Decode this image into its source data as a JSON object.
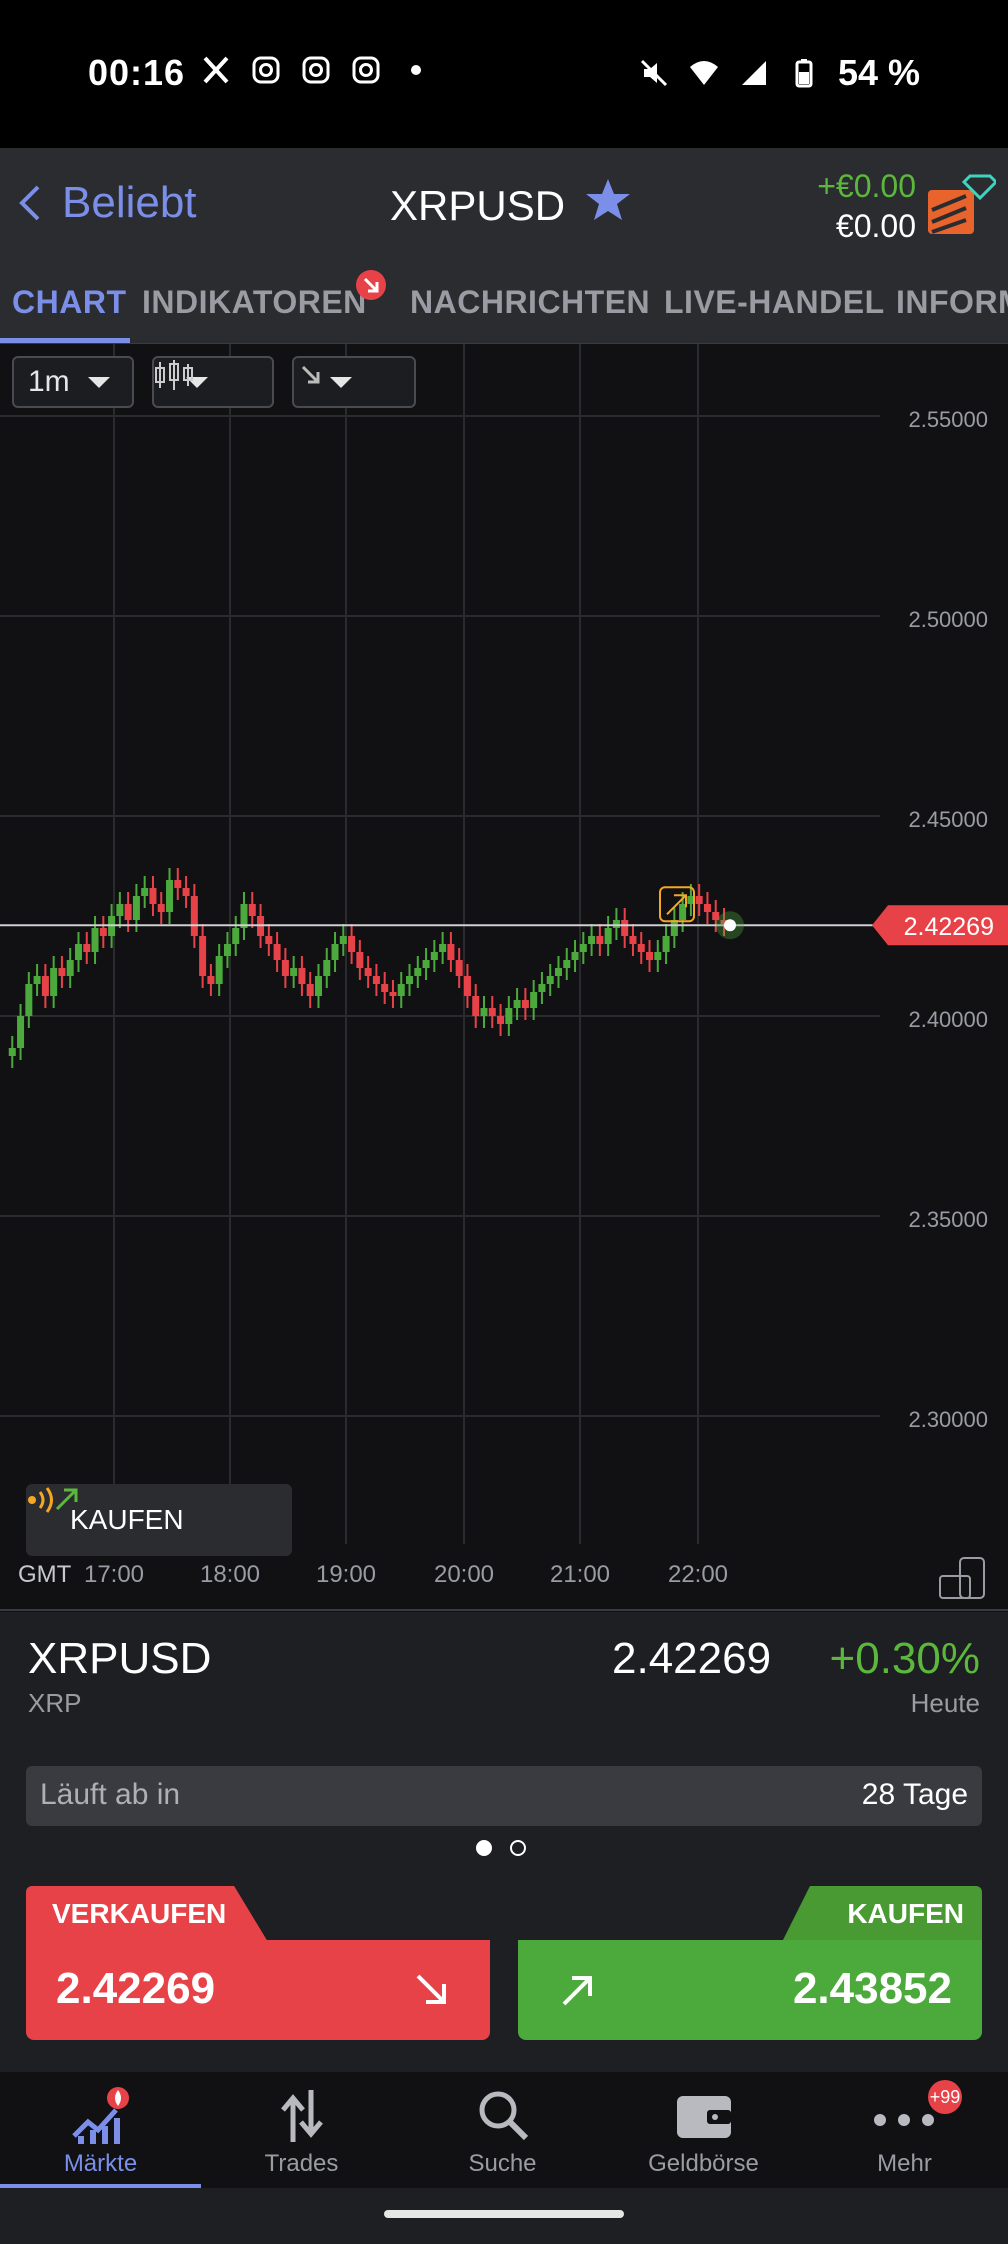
{
  "status_bar": {
    "time": "00:16",
    "battery": "54 %"
  },
  "header": {
    "back_label": "Beliebt",
    "title": "XRPUSD",
    "pl_change": "+€0.00",
    "pl_value": "€0.00"
  },
  "tabs": [
    "CHART",
    "INDIKATOREN",
    "NACHRICHTEN",
    "LIVE-HANDEL",
    "INFORM"
  ],
  "chart_toolbar": {
    "interval": "1m"
  },
  "chart_data": {
    "type": "candlestick",
    "x_labels": [
      "GMT",
      "17:00",
      "18:00",
      "19:00",
      "20:00",
      "21:00",
      "22:00"
    ],
    "y_ticks": [
      "2.55000",
      "2.50000",
      "2.45000",
      "2.40000",
      "2.35000",
      "2.30000"
    ],
    "ylim": [
      2.3,
      2.55
    ],
    "current_price_label": "2.42269",
    "current_price": 2.42269,
    "series": [
      2.39,
      2.392,
      2.4,
      2.408,
      2.41,
      2.405,
      2.412,
      2.41,
      2.414,
      2.418,
      2.416,
      2.422,
      2.42,
      2.425,
      2.428,
      2.424,
      2.43,
      2.432,
      2.428,
      2.426,
      2.434,
      2.432,
      2.43,
      2.42,
      2.41,
      2.408,
      2.415,
      2.418,
      2.422,
      2.428,
      2.425,
      2.42,
      2.418,
      2.414,
      2.41,
      2.412,
      2.408,
      2.405,
      2.41,
      2.414,
      2.418,
      2.42,
      2.416,
      2.412,
      2.41,
      2.408,
      2.406,
      2.405,
      2.408,
      2.41,
      2.412,
      2.414,
      2.416,
      2.418,
      2.414,
      2.41,
      2.405,
      2.4,
      2.402,
      2.4,
      2.398,
      2.402,
      2.404,
      2.402,
      2.406,
      2.408,
      2.41,
      2.412,
      2.414,
      2.416,
      2.418,
      2.42,
      2.418,
      2.422,
      2.424,
      2.42,
      2.418,
      2.416,
      2.414,
      2.416,
      2.42,
      2.424,
      2.428,
      2.43,
      2.428,
      2.426,
      2.424,
      2.423
    ]
  },
  "chart_chip": {
    "label": "KAUFEN"
  },
  "instrument": {
    "symbol": "XRPUSD",
    "name": "XRP",
    "price": "2.42269",
    "change": "+0.30%",
    "change_period": "Heute",
    "expiry_label": "Läuft ab in",
    "expiry_value": "28 Tage"
  },
  "trade": {
    "sell_label": "VERKAUFEN",
    "sell_price": "2.42269",
    "buy_label": "KAUFEN",
    "buy_price": "2.43852"
  },
  "nav": [
    {
      "label": "Märkte"
    },
    {
      "label": "Trades"
    },
    {
      "label": "Suche"
    },
    {
      "label": "Geldbörse"
    },
    {
      "label": "Mehr",
      "badge": "+99"
    }
  ],
  "colors": {
    "accent": "#7b8fe8",
    "sell": "#e84249",
    "buy": "#4caa3c"
  }
}
